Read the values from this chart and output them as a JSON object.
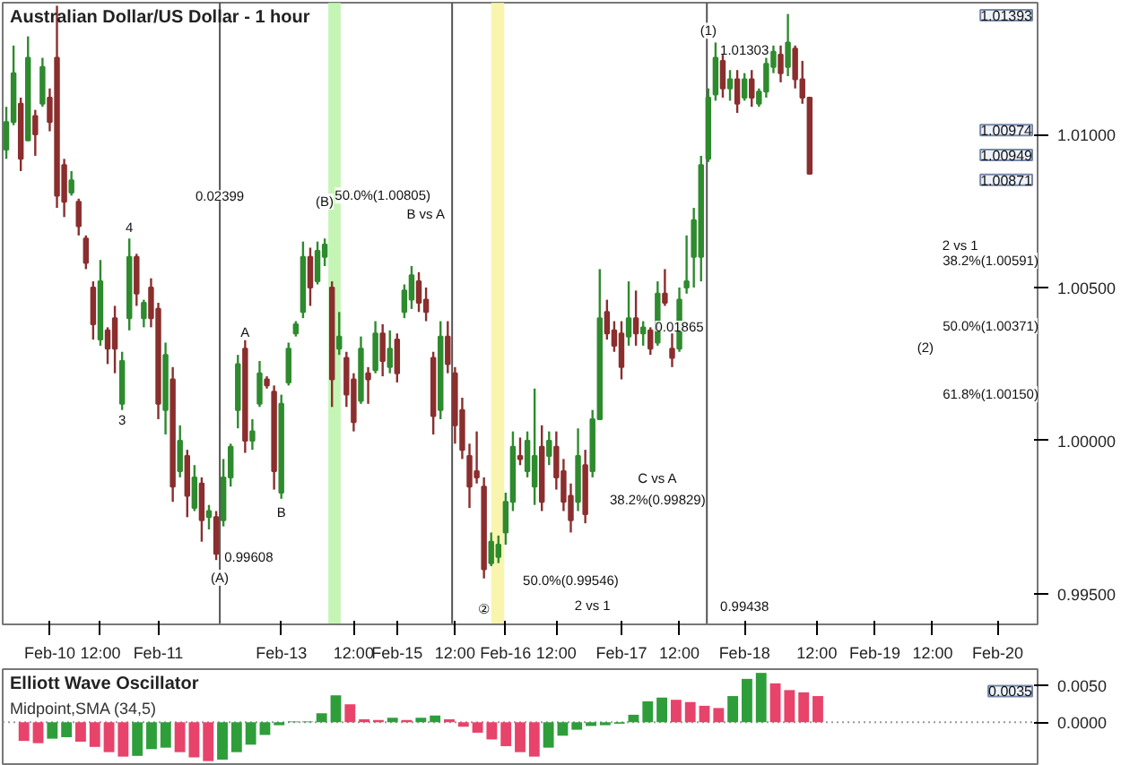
{
  "chart_data": [
    {
      "type": "candlestick",
      "title": "Australian Dollar/US Dollar - 1 hour",
      "categories": [
        null,
        null,
        null,
        null,
        null,
        null,
        "Feb-10",
        null,
        null,
        null,
        null,
        null,
        null,
        "12:00",
        null,
        null,
        null,
        null,
        null,
        null,
        null,
        "Feb-11",
        null,
        null,
        null,
        null,
        null,
        null,
        null,
        null,
        null,
        null,
        null,
        null,
        null,
        null,
        null,
        null,
        "Feb-13",
        null,
        null,
        null,
        null,
        null,
        null,
        null,
        null,
        null,
        "12:00",
        null,
        null,
        null,
        null,
        null,
        "Feb-15",
        null,
        null,
        null,
        null,
        null,
        null,
        null,
        "12:00",
        null,
        null,
        null,
        null,
        null,
        null,
        "Feb-16",
        null,
        null,
        null,
        null,
        null,
        null,
        "12:00",
        null,
        null,
        null,
        null,
        null,
        null,
        null,
        null,
        "Feb-17",
        null,
        null,
        null,
        null,
        null,
        null,
        null,
        "12:00",
        null,
        null,
        null,
        null,
        null,
        null,
        null,
        null,
        "Feb-18",
        null,
        null,
        null,
        null,
        null,
        null,
        null,
        null,
        null,
        "12:00",
        null,
        null,
        null,
        null,
        null,
        null,
        null,
        "Feb-19",
        null,
        null,
        null,
        null,
        null,
        null,
        null,
        "12:00",
        null,
        null,
        null,
        null,
        null,
        null,
        null,
        null,
        "Feb-20",
        null,
        null,
        null,
        null,
        null
      ],
      "colors": [
        "#2e8b2e",
        "#2e8b2e",
        "#8b2e2e",
        "#2e8b2e",
        "#8b2e2e",
        "#2e8b2e",
        "#8b2e2e",
        "#8b2e2e",
        "#8b2e2e",
        "#2e8b2e",
        "#8b2e2e",
        "#8b2e2e",
        "#8b2e2e",
        "#2e8b2e",
        "#8b2e2e",
        "#8b2e2e",
        "#2e8b2e",
        "#2e8b2e",
        "#8b2e2e",
        "#2e8b2e",
        "#8b2e2e",
        "#8b2e2e",
        "#2e8b2e",
        "#8b2e2e",
        "#2e8b2e",
        "#8b2e2e",
        "#2e8b2e",
        "#8b2e2e",
        "#2e8b2e",
        "#8b2e2e",
        "#2e8b2e",
        "#2e8b2e",
        "#2e8b2e",
        "#8b2e2e",
        "#2e8b2e",
        "#2e8b2e",
        "#8b2e2e",
        "#8b2e2e",
        "#2e8b2e",
        "#2e8b2e",
        "#2e8b2e",
        "#2e8b2e",
        "#8b2e2e",
        "#2e8b2e",
        "#2e8b2e",
        "#8b2e2e",
        "#2e8b2e",
        "#8b2e2e",
        "#8b2e2e",
        "#2e8b2e",
        "#8b2e2e",
        "#2e8b2e",
        "#8b2e2e",
        "#2e8b2e",
        "#8b2e2e",
        "#2e8b2e",
        "#2e8b2e",
        "#8b2e2e",
        "#8b2e2e",
        "#8b2e2e",
        "#2e8b2e",
        "#8b2e2e",
        "#8b2e2e",
        "#8b2e2e",
        "#8b2e2e",
        "#8b2e2e",
        "#8b2e2e",
        "#2e8b2e",
        "#2e8b2e",
        "#2e8b2e",
        "#2e8b2e",
        "#8b2e2e",
        "#2e8b2e",
        "#2e8b2e",
        "#8b2e2e",
        "#2e8b2e",
        "#8b2e2e",
        "#8b2e2e",
        "#8b2e2e",
        "#2e8b2e",
        "#8b2e2e",
        "#2e8b2e",
        "#2e8b2e",
        "#8b2e2e",
        "#8b2e2e",
        "#8b2e2e",
        "#2e8b2e",
        "#8b2e2e",
        "#2e8b2e",
        "#8b2e2e",
        "#2e8b2e",
        "#8b2e2e",
        "#8b2e2e",
        "#2e8b2e",
        "#2e8b2e",
        "#2e8b2e",
        "#2e8b2e",
        "#2e8b2e",
        "#2e8b2e",
        "#8b2e2e",
        "#2e8b2e",
        "#8b2e2e",
        "#2e8b2e",
        "#8b2e2e",
        "#2e8b2e",
        "#2e8b2e",
        "#2e8b2e",
        "#8b2e2e",
        "#2e8b2e",
        "#8b2e2e",
        "#8b2e2e",
        "#8b2e2e",
        null,
        null,
        null,
        null,
        null,
        null,
        null,
        null,
        null,
        null,
        null,
        null,
        null,
        null,
        null,
        null,
        null,
        null,
        null,
        null,
        null,
        null,
        null,
        null,
        null,
        null,
        null,
        null,
        null,
        null,
        null
      ],
      "ohlc": [
        [
          1.0095,
          1.0109,
          1.0092,
          1.0104
        ],
        [
          1.0104,
          1.0129,
          1.0103,
          1.012
        ],
        [
          1.011,
          1.0112,
          1.0088,
          1.0092
        ],
        [
          1.0098,
          1.0132,
          1.0098,
          1.0125
        ],
        [
          1.0106,
          1.0108,
          1.0093,
          1.01
        ],
        [
          1.011,
          1.0125,
          1.0109,
          1.0122
        ],
        [
          1.0112,
          1.0115,
          1.0101,
          1.0104
        ],
        [
          1.0125,
          1.0142,
          1.0076,
          1.008
        ],
        [
          1.009,
          1.0092,
          1.0073,
          1.0078
        ],
        [
          1.0081,
          1.0088,
          1.008,
          1.0085
        ],
        [
          1.0078,
          1.0079,
          1.0067,
          1.007
        ],
        [
          1.0066,
          1.0067,
          1.0056,
          1.0058
        ],
        [
          1.005,
          1.0052,
          1.0033,
          1.0038
        ],
        [
          1.0033,
          1.0059,
          1.0031,
          1.0052
        ],
        [
          1.0036,
          1.0037,
          1.0025,
          1.003
        ],
        [
          1.004,
          1.0044,
          1.0022,
          1.003
        ],
        [
          1.0012,
          1.0029,
          1.001,
          1.0026
        ],
        [
          1.004,
          1.0066,
          1.0036,
          1.006
        ],
        [
          1.006,
          1.0061,
          1.0044,
          1.0048
        ],
        [
          1.004,
          1.0046,
          1.0037,
          1.0045
        ],
        [
          1.005,
          1.0053,
          1.0037,
          1.004
        ],
        [
          1.0043,
          1.0045,
          1.0007,
          1.0012
        ],
        [
          1.001,
          1.0032,
          1.0002,
          1.0028
        ],
        [
          1.002,
          1.0024,
          0.998,
          0.9985
        ],
        [
          0.999,
          1.0005,
          0.9988,
          1.0
        ],
        [
          0.9995,
          0.9997,
          0.9975,
          0.9982
        ],
        [
          0.9978,
          0.9992,
          0.9977,
          0.9988
        ],
        [
          0.9986,
          0.9988,
          0.9967,
          0.9974
        ],
        [
          0.9975,
          0.9979,
          0.9971,
          0.9977
        ],
        [
          0.9975,
          0.9977,
          0.9961,
          0.9963
        ],
        [
          0.9974,
          0.9994,
          0.9972,
          0.9988
        ],
        [
          0.9988,
          0.9999,
          0.9985,
          0.9998
        ],
        [
          1.001,
          1.0028,
          1.0004,
          1.0025
        ],
        [
          1.003,
          1.0033,
          0.9996,
          1.0
        ],
        [
          1.0,
          1.0007,
          0.9997,
          1.0003
        ],
        [
          1.0012,
          1.0026,
          1.0011,
          1.0022
        ],
        [
          1.002,
          1.0021,
          1.0017,
          1.0018
        ],
        [
          1.0016,
          1.0018,
          0.9984,
          0.999
        ],
        [
          0.9983,
          1.0015,
          0.9981,
          1.0012
        ],
        [
          1.0019,
          1.0032,
          1.0018,
          1.003
        ],
        [
          1.0035,
          1.0039,
          1.0034,
          1.0038
        ],
        [
          1.0042,
          1.0065,
          1.004,
          1.006
        ],
        [
          1.006,
          1.0063,
          1.0044,
          1.005
        ],
        [
          1.0052,
          1.0065,
          1.0051,
          1.0062
        ],
        [
          1.006,
          1.0066,
          1.0057,
          1.0064
        ],
        [
          1.005,
          1.0052,
          1.0011,
          1.002
        ],
        [
          1.003,
          1.0042,
          1.0028,
          1.0034
        ],
        [
          1.0027,
          1.0029,
          1.0011,
          1.0015
        ],
        [
          1.002,
          1.0022,
          1.0003,
          1.0006
        ],
        [
          1.0013,
          1.0034,
          1.0012,
          1.003
        ],
        [
          1.0022,
          1.0024,
          1.0012,
          1.002
        ],
        [
          1.0023,
          1.0039,
          1.0022,
          1.0035
        ],
        [
          1.0035,
          1.0038,
          1.0021,
          1.0026
        ],
        [
          1.0024,
          1.0036,
          1.0022,
          1.003
        ],
        [
          1.0033,
          1.0035,
          1.0019,
          1.0022
        ],
        [
          1.0042,
          1.0051,
          1.004,
          1.0049
        ],
        [
          1.0046,
          1.0057,
          1.0043,
          1.0054
        ],
        [
          1.0052,
          1.0055,
          1.0042,
          1.0045
        ],
        [
          1.0046,
          1.005,
          1.0039,
          1.0042
        ],
        [
          1.0027,
          1.0029,
          1.0002,
          1.0008
        ],
        [
          1.001,
          1.0039,
          1.0007,
          1.0034
        ],
        [
          1.0034,
          1.0039,
          1.0022,
          1.0025
        ],
        [
          1.0022,
          1.0024,
          0.9999,
          1.0005
        ],
        [
          1.001,
          1.0014,
          0.9994,
          0.9997
        ],
        [
          0.9995,
          0.9999,
          0.9978,
          0.9985
        ],
        [
          0.999,
          1.0003,
          0.9986,
          0.9988
        ],
        [
          0.9985,
          0.9988,
          0.9955,
          0.9958
        ],
        [
          0.996,
          0.997,
          0.9959,
          0.9967
        ],
        [
          0.9962,
          0.9969,
          0.996,
          0.9966
        ],
        [
          0.997,
          0.9983,
          0.9966,
          0.998
        ],
        [
          0.998,
          1.0003,
          0.9977,
          0.9998
        ],
        [
          0.9995,
          1.0001,
          0.9992,
          0.9994
        ],
        [
          0.999,
          1.0003,
          0.9988,
          1.0
        ],
        [
          0.9985,
          1.0017,
          0.9979,
          0.9995
        ],
        [
          0.9998,
          1.0005,
          0.9977,
          0.998
        ],
        [
          0.9995,
          1.0003,
          0.9992,
          1.0
        ],
        [
          0.9998,
          1.0003,
          0.9984,
          0.9988
        ],
        [
          0.999,
          0.9994,
          0.9977,
          0.998
        ],
        [
          0.9982,
          0.9986,
          0.997,
          0.9974
        ],
        [
          0.998,
          1.0004,
          0.9977,
          0.9995
        ],
        [
          0.9992,
          0.9997,
          0.9973,
          0.9976
        ],
        [
          0.999,
          1.001,
          0.9988,
          1.0007
        ],
        [
          1.0007,
          1.0056,
          1.0007,
          1.004
        ],
        [
          1.0042,
          1.0046,
          1.0033,
          1.0035
        ],
        [
          1.0036,
          1.0039,
          1.0029,
          1.0031
        ],
        [
          1.0035,
          1.0039,
          1.002,
          1.0024
        ],
        [
          1.0034,
          1.0052,
          1.0031,
          1.004
        ],
        [
          1.004,
          1.0049,
          1.0031,
          1.0035
        ],
        [
          1.0035,
          1.0039,
          1.0031,
          1.0037
        ],
        [
          1.0036,
          1.0037,
          1.0028,
          1.003
        ],
        [
          1.0032,
          1.0052,
          1.0031,
          1.0048
        ],
        [
          1.0048,
          1.0056,
          1.0044,
          1.0045
        ],
        [
          1.003,
          1.0035,
          1.0024,
          1.0027
        ],
        [
          1.003,
          1.005,
          1.0029,
          1.0046
        ],
        [
          1.005,
          1.0067,
          1.0048,
          1.0052
        ],
        [
          1.006,
          1.0076,
          1.005,
          1.0072
        ],
        [
          1.006,
          1.0093,
          1.0052,
          1.009
        ],
        [
          1.0092,
          1.0115,
          1.0091,
          1.0112
        ],
        [
          1.0113,
          1.013,
          1.0111,
          1.0125
        ],
        [
          1.0124,
          1.0126,
          1.0112,
          1.0115
        ],
        [
          1.0115,
          1.0121,
          1.0111,
          1.0118
        ],
        [
          1.0118,
          1.0121,
          1.0107,
          1.011
        ],
        [
          1.0112,
          1.012,
          1.0111,
          1.0118
        ],
        [
          1.0118,
          1.0121,
          1.0109,
          1.0112
        ],
        [
          1.011,
          1.0115,
          1.0109,
          1.0114
        ],
        [
          1.0114,
          1.0125,
          1.0112,
          1.0123
        ],
        [
          1.0122,
          1.0129,
          1.012,
          1.0127
        ],
        [
          1.0126,
          1.0129,
          1.0117,
          1.012
        ],
        [
          1.0122,
          1.01393,
          1.0119,
          1.013
        ],
        [
          1.0128,
          1.0129,
          1.0115,
          1.0118
        ],
        [
          1.0118,
          1.0124,
          1.011,
          1.0112
        ],
        [
          1.0112,
          1.0112,
          1.00871,
          1.00871
        ],
        null,
        null,
        null,
        null,
        null,
        null,
        null,
        null,
        null,
        null,
        null,
        null,
        null,
        null,
        null,
        null,
        null,
        null,
        null,
        null,
        null,
        null,
        null,
        null,
        null,
        null,
        null,
        null,
        null,
        null,
        null
      ],
      "ylim": [
        0.994,
        1.0143
      ],
      "yticks": [
        {
          "value": 0.995,
          "label": "0.99500"
        },
        {
          "value": 1.0,
          "label": "1.00000"
        },
        {
          "value": 1.005,
          "label": "1.00500"
        },
        {
          "value": 1.01,
          "label": "1.01000"
        }
      ],
      "annotations": [
        "4",
        "3",
        "0.02399",
        "0.99608",
        "(A)",
        "A",
        "B",
        "(B)",
        "50.0%(1.00805)",
        "B vs A",
        "C vs A",
        "38.2%(0.99829)",
        "50.0%(0.99546)",
        "②",
        "2 vs 1",
        "(1)",
        "1.01303",
        "0.01865",
        "0.99438",
        "2 vs 1",
        "38.2%(1.00591)",
        "50.0%(1.00371)",
        "(2)",
        "61.8%(1.00150)",
        "1.01393",
        "1.00974",
        "1.00949",
        "1.00871"
      ]
    },
    {
      "type": "bar",
      "title": "Elliott Wave Oscillator",
      "subtitle": "Midpoint,SMA (34,5)",
      "categories": [
        null,
        null,
        null,
        null,
        null,
        null,
        null,
        null,
        null,
        null,
        null,
        null,
        null,
        null,
        null,
        null,
        null,
        null,
        null,
        null,
        null,
        null,
        null,
        null,
        null,
        null,
        null,
        null,
        null,
        null,
        null,
        null,
        null,
        null,
        null,
        null,
        null,
        null,
        null,
        null,
        null,
        null,
        null,
        null,
        null,
        null,
        null,
        null,
        null,
        null,
        null,
        null,
        null,
        null,
        null,
        null,
        null,
        null,
        null,
        null,
        null,
        null,
        null,
        null,
        null,
        null,
        null,
        null,
        null,
        null,
        null,
        null,
        null
      ],
      "values": [
        null,
        -0.0025,
        -0.0028,
        -0.0022,
        -0.002,
        -0.0026,
        -0.0033,
        -0.004,
        -0.0046,
        -0.0045,
        -0.0036,
        -0.0034,
        -0.004,
        -0.0047,
        -0.0052,
        -0.005,
        -0.004,
        -0.003,
        -0.0017,
        -0.0004,
        0.0001,
        0.0001,
        0.0012,
        0.0036,
        0.0024,
        0.0004,
        0.0003,
        0.0006,
        0.0003,
        0.0006,
        0.0009,
        0.0004,
        -0.0006,
        -0.0014,
        -0.0023,
        -0.0032,
        -0.004,
        -0.0046,
        -0.0034,
        -0.0018,
        -0.001,
        -0.0005,
        -0.0004,
        -0.0002,
        0.001,
        0.0028,
        0.0033,
        0.003,
        0.0027,
        0.0022,
        0.0019,
        0.0035,
        0.0058,
        0.0066,
        0.0052,
        0.0043,
        0.004,
        0.0035,
        null,
        null,
        null,
        null,
        null,
        null,
        null,
        null,
        null,
        null,
        null,
        null,
        null,
        null,
        null
      ],
      "colors": [
        null,
        "#e8436a",
        "#e8436a",
        "#2e9e3a",
        "#2e9e3a",
        "#e8436a",
        "#e8436a",
        "#e8436a",
        "#e8436a",
        "#2e9e3a",
        "#2e9e3a",
        "#2e9e3a",
        "#e8436a",
        "#e8436a",
        "#e8436a",
        "#2e9e3a",
        "#2e9e3a",
        "#2e9e3a",
        "#2e9e3a",
        "#2e9e3a",
        "#2e9e3a",
        "#2e9e3a",
        "#2e9e3a",
        "#2e9e3a",
        "#e8436a",
        "#e8436a",
        "#e8436a",
        "#2e9e3a",
        "#e8436a",
        "#2e9e3a",
        "#2e9e3a",
        "#e8436a",
        "#e8436a",
        "#e8436a",
        "#e8436a",
        "#e8436a",
        "#e8436a",
        "#e8436a",
        "#2e9e3a",
        "#2e9e3a",
        "#2e9e3a",
        "#2e9e3a",
        "#2e9e3a",
        "#2e9e3a",
        "#2e9e3a",
        "#2e9e3a",
        "#2e9e3a",
        "#e8436a",
        "#e8436a",
        "#e8436a",
        "#e8436a",
        "#2e9e3a",
        "#2e9e3a",
        "#2e9e3a",
        "#e8436a",
        "#e8436a",
        "#e8436a",
        "#e8436a",
        null,
        null,
        null,
        null,
        null,
        null,
        null,
        null,
        null,
        null,
        null,
        null,
        null,
        null,
        null
      ],
      "ylim": [
        -0.0056,
        0.0071
      ],
      "yticks": [
        {
          "value": 0,
          "label": "0.0000"
        },
        {
          "value": 0.005,
          "label": "0.0050"
        }
      ],
      "tick_labels": "y",
      "ref_lines": [
        {
          "axis": "y",
          "value": 0,
          "color": "#999999",
          "line_style": "dotted"
        }
      ],
      "annotations": [
        "0.0035"
      ]
    }
  ]
}
